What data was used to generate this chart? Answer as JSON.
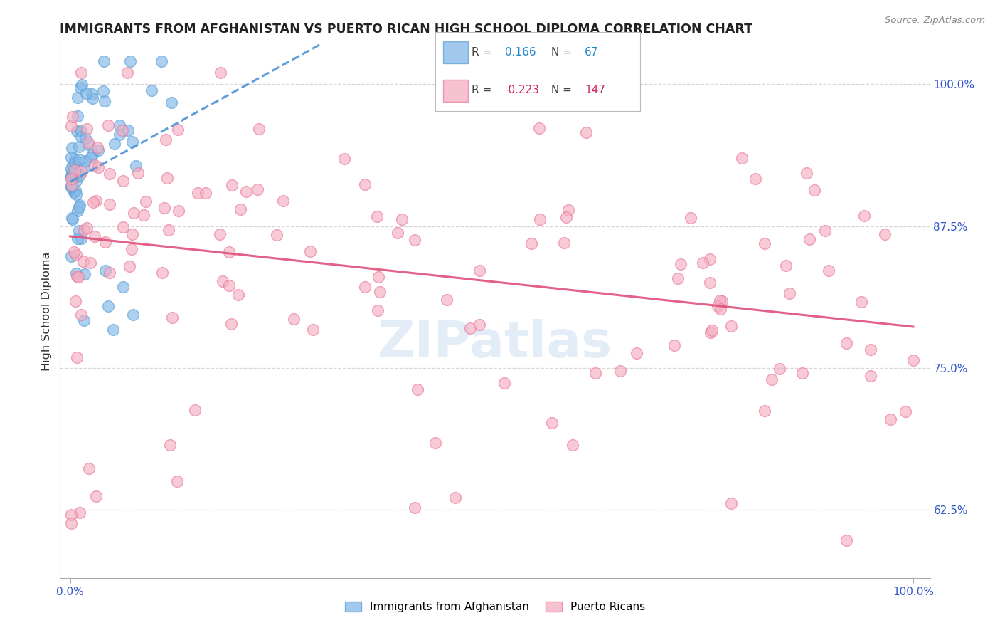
{
  "title": "IMMIGRANTS FROM AFGHANISTAN VS PUERTO RICAN HIGH SCHOOL DIPLOMA CORRELATION CHART",
  "source": "Source: ZipAtlas.com",
  "ylabel": "High School Diploma",
  "ytick_labels": [
    "100.0%",
    "87.5%",
    "75.0%",
    "62.5%"
  ],
  "ytick_values": [
    1.0,
    0.875,
    0.75,
    0.625
  ],
  "ylim": [
    0.565,
    1.035
  ],
  "xlim": [
    -0.012,
    1.02
  ],
  "blue_color": "#82b8e8",
  "blue_edge_color": "#5a9fd4",
  "pink_color": "#f5aec0",
  "pink_edge_color": "#e87aa0",
  "blue_line_color": "#4d94d4",
  "pink_line_color": "#e0507a",
  "watermark_text": "ZIPatlas",
  "watermark_color": "#b8d4ec",
  "r_blue": "0.166",
  "n_blue": "67",
  "r_pink": "-0.223",
  "n_pink": "147",
  "legend_text_color": "#333333",
  "legend_r_color_blue": "#2288cc",
  "legend_r_color_pink": "#cc2266",
  "grid_color": "#cccccc",
  "axis_color": "#aaaaaa",
  "tick_color": "#3355cc",
  "title_color": "#222222",
  "source_color": "#888888"
}
